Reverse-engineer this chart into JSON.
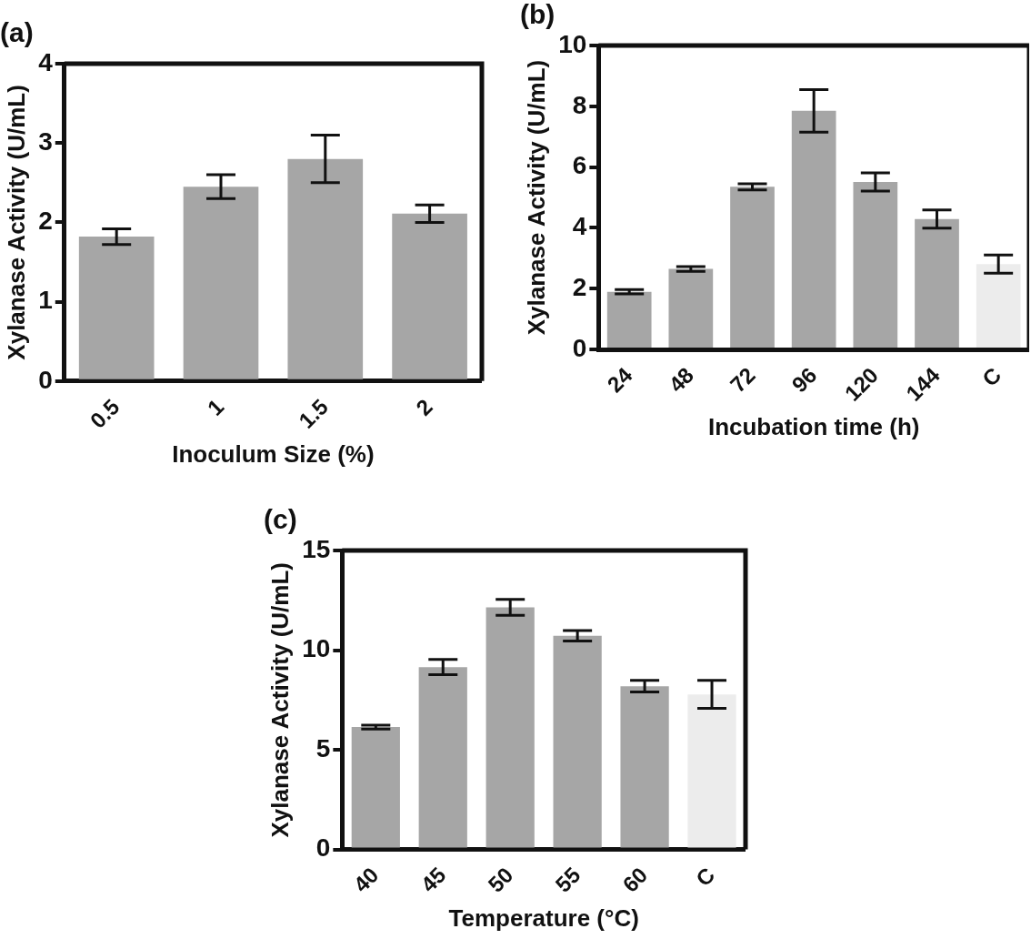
{
  "chart_data": [
    {
      "type": "bar",
      "title": "(a)",
      "xlabel": "Inoculum Size (%)",
      "ylabel": "Xylanase Activity (U/mL)",
      "categories": [
        "0.5",
        "1",
        "1.5",
        "2"
      ],
      "values": [
        1.82,
        2.45,
        2.8,
        2.11
      ],
      "errors": [
        0.1,
        0.15,
        0.3,
        0.11
      ],
      "colors": [
        "#a6a6a6",
        "#a6a6a6",
        "#a6a6a6",
        "#a6a6a6"
      ],
      "ylim": [
        0,
        4
      ],
      "yticks": [
        0,
        1,
        2,
        3,
        4
      ],
      "grid": false,
      "legend": false
    },
    {
      "type": "bar",
      "title": "(b)",
      "xlabel": "Incubation time (h)",
      "ylabel": "Xylanase Activity (U/mL)",
      "categories": [
        "24",
        "48",
        "72",
        "96",
        "120",
        "144",
        "C"
      ],
      "values": [
        1.9,
        2.65,
        5.35,
        7.85,
        5.51,
        4.29,
        2.81
      ],
      "errors": [
        0.07,
        0.08,
        0.1,
        0.7,
        0.3,
        0.3,
        0.3
      ],
      "colors": [
        "#a6a6a6",
        "#a6a6a6",
        "#a6a6a6",
        "#a6a6a6",
        "#a6a6a6",
        "#a6a6a6",
        "#ececec"
      ],
      "ylim": [
        0,
        10
      ],
      "yticks": [
        0,
        2,
        4,
        6,
        8,
        10
      ],
      "grid": false,
      "legend": false
    },
    {
      "type": "bar",
      "title": "(c)",
      "xlabel": "Temperature (°C)",
      "ylabel": "Xylanase Activity (U/mL)",
      "categories": [
        "40",
        "45",
        "50",
        "55",
        "60",
        "C"
      ],
      "values": [
        6.14,
        9.15,
        12.15,
        10.72,
        8.19,
        7.78
      ],
      "errors": [
        0.1,
        0.38,
        0.4,
        0.26,
        0.29,
        0.7
      ],
      "colors": [
        "#a6a6a6",
        "#a6a6a6",
        "#a6a6a6",
        "#a6a6a6",
        "#a6a6a6",
        "#ececec"
      ],
      "ylim": [
        0,
        15
      ],
      "yticks": [
        0,
        5,
        10,
        15
      ],
      "grid": false,
      "legend": false
    }
  ]
}
